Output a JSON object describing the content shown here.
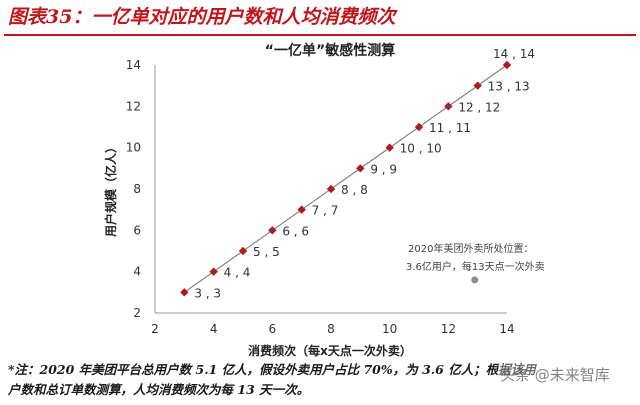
{
  "figure_title": "图表35：一亿单对应的用户数和人均消费频次",
  "chart_data": {
    "type": "scatter",
    "title": "“一亿单”敏感性测算",
    "xlabel": "消费频次（每x天点一次外卖）",
    "ylabel": "用户规模（亿人）",
    "xlim": [
      2,
      14
    ],
    "ylim": [
      2,
      14
    ],
    "xticks": [
      2,
      4,
      6,
      8,
      10,
      12,
      14
    ],
    "yticks": [
      2,
      4,
      6,
      8,
      10,
      12,
      14
    ],
    "grid": false,
    "series": [
      {
        "x": [
          3,
          4,
          5,
          6,
          7,
          8,
          9,
          10,
          11,
          12,
          13,
          14
        ],
        "y": [
          3,
          4,
          5,
          6,
          7,
          8,
          9,
          10,
          11,
          12,
          13,
          14
        ],
        "point_labels": [
          "3 , 3",
          "4 , 4",
          "5 , 5",
          "6 , 6",
          "7 , 7",
          "8 , 8",
          "9 , 9",
          "10 , 10",
          "11 , 11",
          "12 , 12",
          "13 , 13",
          "14 , 14"
        ],
        "marker": "diamond",
        "color": "#b01c1c"
      },
      {
        "x": [
          12.9
        ],
        "y": [
          3.6
        ],
        "marker": "circle",
        "color": "#8c8c8c"
      }
    ],
    "annotation": {
      "line1": "2020年美团外卖所处位置：",
      "line2": "3.6亿用户，每13天点一次外卖"
    }
  },
  "footnote": {
    "line1": "*注：2020 年美团平台总用户数 5.1 亿人，假设外卖用户占比 70%，为 3.6 亿人；根据该用",
    "line2": "户数和总订单数测算，人均消费频次为每 13 天一次。"
  },
  "watermark": "头条 @未来智库"
}
